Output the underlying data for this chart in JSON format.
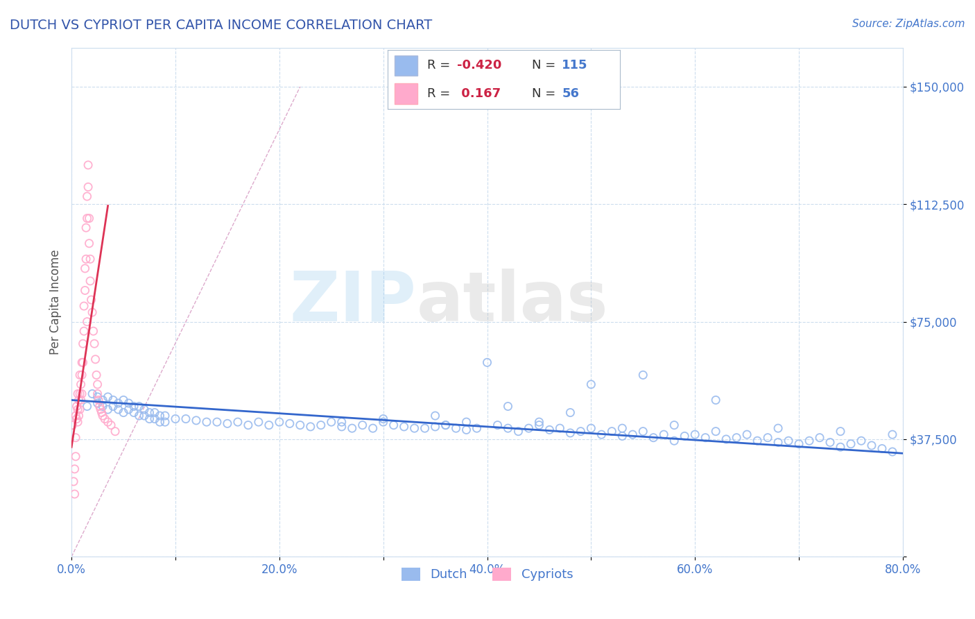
{
  "title": "DUTCH VS CYPRIOT PER CAPITA INCOME CORRELATION CHART",
  "source_text": "Source: ZipAtlas.com",
  "ylabel": "Per Capita Income",
  "xlim": [
    0.0,
    0.8
  ],
  "ylim": [
    0,
    162500
  ],
  "xtick_labels": [
    "0.0%",
    "",
    "20.0%",
    "",
    "40.0%",
    "",
    "60.0%",
    "",
    "80.0%"
  ],
  "xtick_vals": [
    0.0,
    0.1,
    0.2,
    0.3,
    0.4,
    0.5,
    0.6,
    0.7,
    0.8
  ],
  "ytick_vals": [
    0,
    37500,
    75000,
    112500,
    150000
  ],
  "ytick_labels": [
    "",
    "$37,500",
    "$75,000",
    "$112,500",
    "$150,000"
  ],
  "title_color": "#3355aa",
  "axis_label_color": "#555555",
  "tick_label_color": "#4477cc",
  "grid_color": "#ccddee",
  "background_color": "#ffffff",
  "dutch_color": "#99bbee",
  "cypriot_color": "#ffaacc",
  "dutch_line_color": "#3366cc",
  "cypriot_line_color": "#dd3355",
  "ref_line_color": "#ddaacc",
  "legend_R_dutch": "-0.420",
  "legend_N_dutch": "115",
  "legend_R_cypriot": "0.167",
  "legend_N_cypriot": "56",
  "dutch_scatter_x": [
    0.015,
    0.02,
    0.025,
    0.025,
    0.03,
    0.03,
    0.035,
    0.035,
    0.04,
    0.04,
    0.045,
    0.045,
    0.05,
    0.05,
    0.055,
    0.055,
    0.06,
    0.06,
    0.065,
    0.065,
    0.07,
    0.07,
    0.075,
    0.075,
    0.08,
    0.08,
    0.085,
    0.085,
    0.09,
    0.09,
    0.1,
    0.11,
    0.12,
    0.13,
    0.14,
    0.15,
    0.16,
    0.17,
    0.18,
    0.19,
    0.2,
    0.21,
    0.22,
    0.23,
    0.24,
    0.25,
    0.26,
    0.27,
    0.28,
    0.29,
    0.3,
    0.31,
    0.32,
    0.33,
    0.34,
    0.35,
    0.36,
    0.37,
    0.38,
    0.39,
    0.4,
    0.41,
    0.42,
    0.43,
    0.44,
    0.45,
    0.46,
    0.47,
    0.48,
    0.49,
    0.5,
    0.51,
    0.52,
    0.53,
    0.54,
    0.55,
    0.56,
    0.57,
    0.58,
    0.59,
    0.6,
    0.61,
    0.62,
    0.63,
    0.64,
    0.65,
    0.66,
    0.67,
    0.68,
    0.69,
    0.7,
    0.71,
    0.72,
    0.73,
    0.74,
    0.75,
    0.76,
    0.77,
    0.78,
    0.79,
    0.55,
    0.62,
    0.48,
    0.58,
    0.68,
    0.74,
    0.79,
    0.35,
    0.42,
    0.3,
    0.5,
    0.45,
    0.53,
    0.38,
    0.26,
    0.36
  ],
  "dutch_scatter_y": [
    48000,
    52000,
    49000,
    51000,
    50000,
    48000,
    51000,
    47000,
    50000,
    48000,
    49000,
    47000,
    50000,
    46000,
    49000,
    47000,
    48000,
    46000,
    48000,
    45000,
    47000,
    45000,
    46000,
    44000,
    46000,
    44000,
    45000,
    43000,
    45000,
    43000,
    44000,
    44000,
    43500,
    43000,
    43000,
    42500,
    43000,
    42000,
    43000,
    42000,
    43000,
    42500,
    42000,
    41500,
    42000,
    43000,
    41500,
    41000,
    42000,
    41000,
    43000,
    42000,
    41500,
    41000,
    41000,
    41500,
    42000,
    41000,
    40500,
    41000,
    62000,
    42000,
    41000,
    40000,
    41000,
    42000,
    40500,
    41000,
    39500,
    40000,
    41000,
    39000,
    40000,
    38500,
    39000,
    40000,
    38000,
    39000,
    37000,
    38500,
    39000,
    38000,
    40000,
    37500,
    38000,
    39000,
    37000,
    38000,
    36500,
    37000,
    36000,
    37000,
    38000,
    36500,
    35000,
    36000,
    37000,
    35500,
    34500,
    33500,
    58000,
    50000,
    46000,
    42000,
    41000,
    40000,
    39000,
    45000,
    48000,
    44000,
    55000,
    43000,
    41000,
    43000,
    43000,
    42000
  ],
  "cypriot_scatter_x": [
    0.001,
    0.002,
    0.003,
    0.004,
    0.004,
    0.005,
    0.005,
    0.006,
    0.006,
    0.007,
    0.007,
    0.008,
    0.008,
    0.009,
    0.009,
    0.01,
    0.01,
    0.011,
    0.011,
    0.012,
    0.012,
    0.013,
    0.013,
    0.014,
    0.014,
    0.015,
    0.015,
    0.016,
    0.016,
    0.017,
    0.017,
    0.018,
    0.018,
    0.019,
    0.02,
    0.021,
    0.022,
    0.023,
    0.024,
    0.025,
    0.025,
    0.026,
    0.027,
    0.028,
    0.029,
    0.03,
    0.032,
    0.035,
    0.038,
    0.042,
    0.003,
    0.004,
    0.006,
    0.008,
    0.01,
    0.015
  ],
  "cypriot_scatter_y": [
    42000,
    24000,
    20000,
    38000,
    32000,
    48000,
    44000,
    47000,
    43000,
    50000,
    45000,
    52000,
    47000,
    55000,
    50000,
    58000,
    52000,
    68000,
    62000,
    80000,
    72000,
    92000,
    85000,
    105000,
    95000,
    115000,
    108000,
    125000,
    118000,
    108000,
    100000,
    95000,
    88000,
    82000,
    78000,
    72000,
    68000,
    63000,
    58000,
    55000,
    52000,
    50000,
    48000,
    47000,
    46000,
    45000,
    44000,
    43000,
    42000,
    40000,
    28000,
    45000,
    52000,
    58000,
    62000,
    75000
  ],
  "dutch_trend_x": [
    0.0,
    0.8
  ],
  "dutch_trend_y": [
    50000,
    33000
  ],
  "cypriot_trend_x": [
    0.0,
    0.035
  ],
  "cypriot_trend_y": [
    35000,
    112000
  ],
  "ref_line_x": [
    0.0,
    0.22
  ],
  "ref_line_y": [
    0,
    150000
  ]
}
